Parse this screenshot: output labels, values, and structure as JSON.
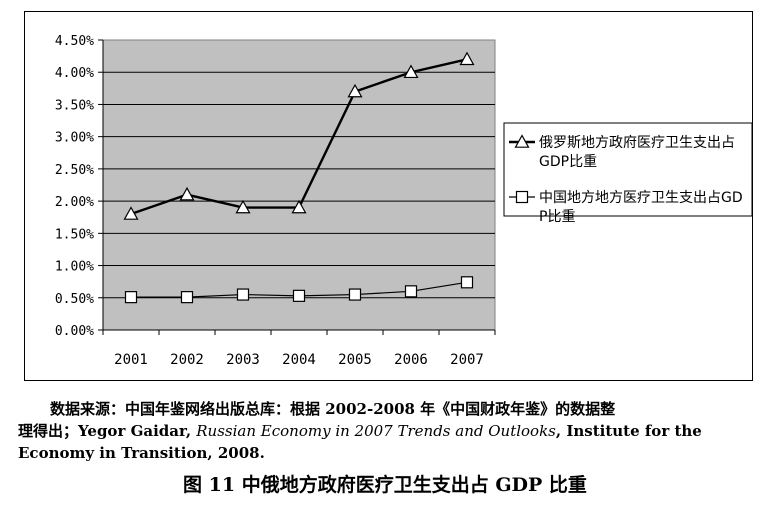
{
  "chart_data": {
    "type": "line",
    "x": [
      "2001",
      "2002",
      "2003",
      "2004",
      "2005",
      "2006",
      "2007"
    ],
    "series": [
      {
        "name": "俄罗斯地方政府医疗卫生支出占GDP比重",
        "marker": "triangle",
        "values": [
          1.8,
          2.1,
          1.9,
          1.9,
          3.7,
          4.0,
          4.2
        ]
      },
      {
        "name": "中国地方地方医疗卫生支出占GDP比重",
        "marker": "square",
        "values": [
          0.51,
          0.51,
          0.55,
          0.53,
          0.55,
          0.6,
          0.74
        ]
      }
    ],
    "ylim": [
      0,
      4.5
    ],
    "yticks": [
      "0.00%",
      "0.50%",
      "1.00%",
      "1.50%",
      "2.00%",
      "2.50%",
      "3.00%",
      "3.50%",
      "4.00%",
      "4.50%"
    ],
    "grid": true,
    "legend_position": "right",
    "plot_background": "#c0c0c0",
    "line_color": "#000000"
  },
  "source_note": {
    "line1": "数据来源：中国年鉴网络出版总库：根据 2002-2008 年《中国财政年鉴》的数据整",
    "line2_a": "理得出；Yegor Gaidar, ",
    "line2_italic": "Russian Economy in 2007 Trends and Outlooks",
    "line2_b": ", Institute for the",
    "line3": "Economy in Transition, 2008."
  },
  "figure_caption": "图 11 中俄地方政府医疗卫生支出占 GDP 比重"
}
